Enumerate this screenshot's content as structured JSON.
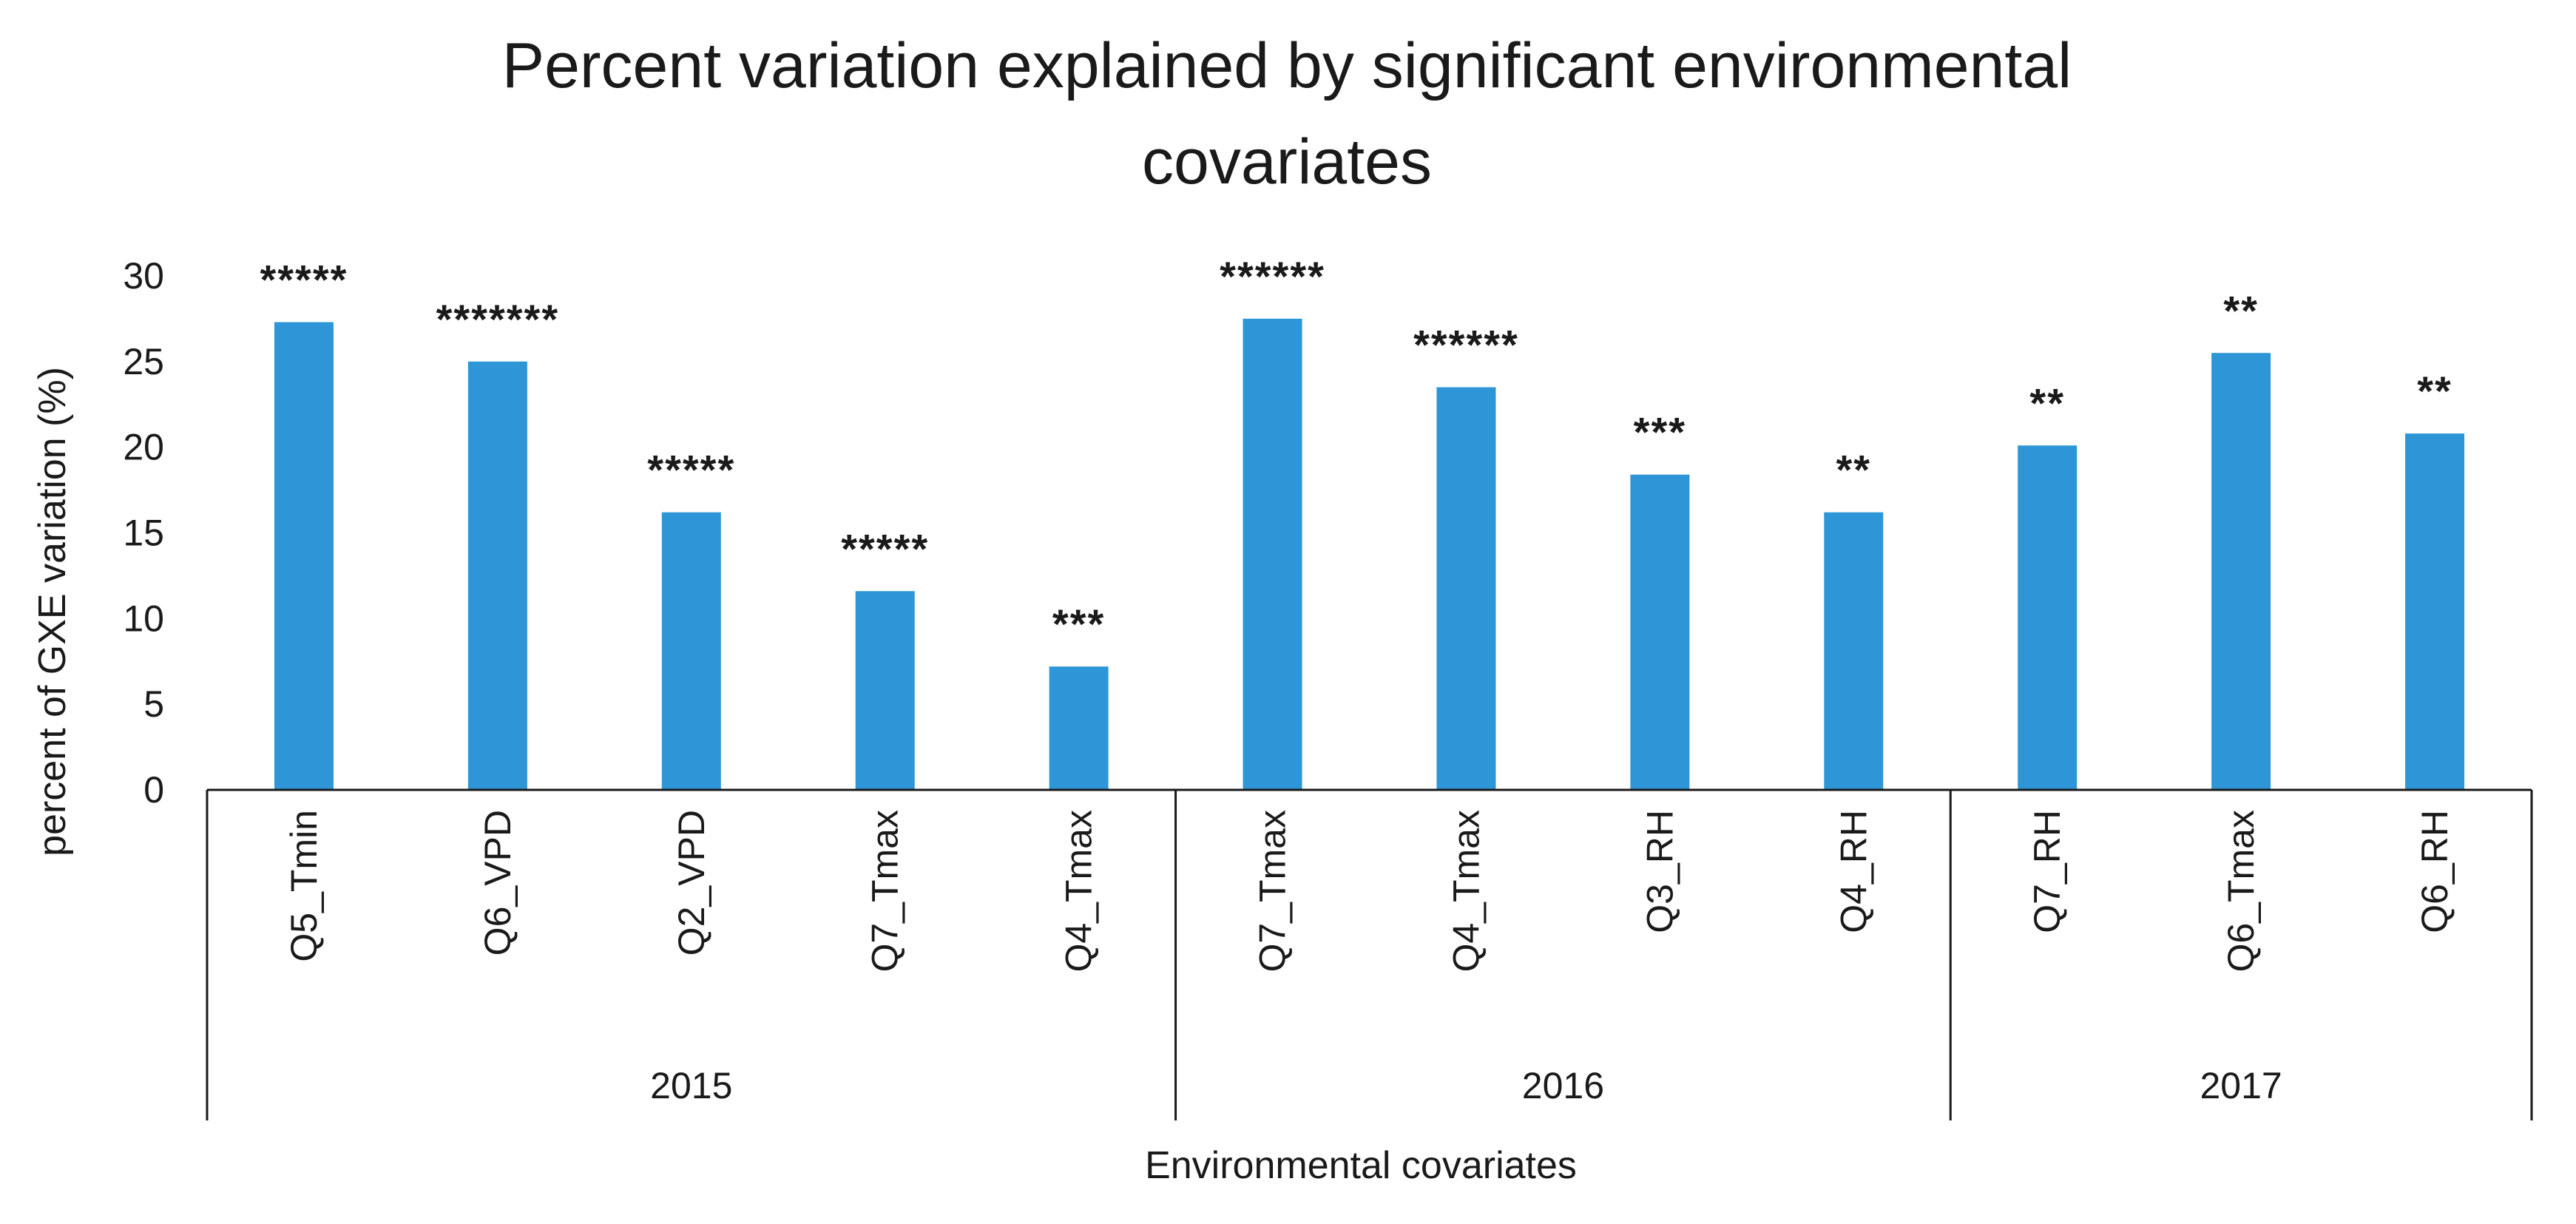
{
  "chart_data": {
    "type": "bar",
    "title": "Percent variation explained by significant environmental covariates",
    "title_lines": [
      "Percent variation explained  by significant environmental",
      "covariates"
    ],
    "xlabel": "Environmental covariates",
    "ylabel": "percent of GXE variation (%)",
    "ylim": [
      0,
      30
    ],
    "yticks": [
      0,
      5,
      10,
      15,
      20,
      25,
      30
    ],
    "grid": false,
    "legend": "none",
    "bar_color": "#2e96d6",
    "categories": [
      "Q5_Tmin",
      "Q6_VPD",
      "Q2_VPD",
      "Q7_Tmax",
      "Q4_Tmax",
      "Q7_Tmax",
      "Q4_Tmax",
      "Q3_RH",
      "Q4_RH",
      "Q7_RH",
      "Q6_Tmax",
      "Q6_RH"
    ],
    "values": [
      27.3,
      25.0,
      16.2,
      11.6,
      7.2,
      27.5,
      23.5,
      18.4,
      16.2,
      20.1,
      25.5,
      20.8
    ],
    "significance": [
      "*****",
      "*******",
      "*****",
      "*****",
      "***",
      "******",
      "******",
      "***",
      "**",
      "**",
      "**",
      "**"
    ],
    "groups": [
      {
        "label": "2015",
        "count": 5
      },
      {
        "label": "2016",
        "count": 4
      },
      {
        "label": "2017",
        "count": 3
      }
    ]
  }
}
